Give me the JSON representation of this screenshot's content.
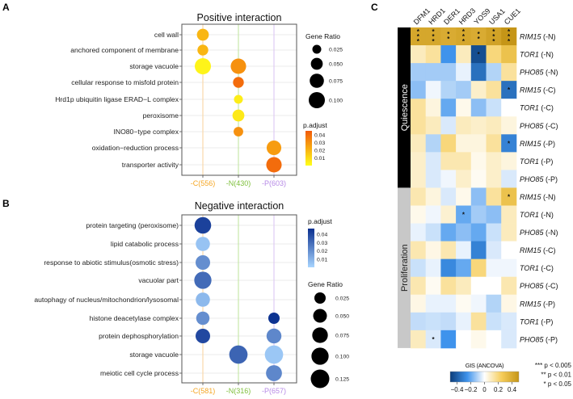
{
  "panels": {
    "a": "A",
    "b": "B",
    "c": "C"
  },
  "chart_data": [
    {
      "type": "scatter",
      "title": "Positive interaction",
      "columns": [
        {
          "label": "-C(556)",
          "color": "#f5a623",
          "line": "#f9d29a"
        },
        {
          "label": "-N(430)",
          "color": "#7dbf3a",
          "line": "#bde39a"
        },
        {
          "label": "-P(603)",
          "color": "#b689e6",
          "line": "#d9c2f3"
        }
      ],
      "terms": [
        "cell wall",
        "anchored component of membrane",
        "storage vacuole",
        "cellular response to misfold protein",
        "Hrd1p ubiquitin ligase ERAD−L complex",
        "peroxisome",
        "INO80−type complex",
        "oxidation−reduction process",
        "transporter activity"
      ],
      "points": [
        {
          "term": 0,
          "col": 0,
          "gene_ratio": 0.05,
          "p_adjust": 0.02
        },
        {
          "term": 1,
          "col": 0,
          "gene_ratio": 0.04,
          "p_adjust": 0.02
        },
        {
          "term": 2,
          "col": 0,
          "gene_ratio": 0.1,
          "p_adjust": 0.003
        },
        {
          "term": 2,
          "col": 1,
          "gene_ratio": 0.09,
          "p_adjust": 0.03
        },
        {
          "term": 3,
          "col": 1,
          "gene_ratio": 0.04,
          "p_adjust": 0.04
        },
        {
          "term": 4,
          "col": 1,
          "gene_ratio": 0.025,
          "p_adjust": 0.005
        },
        {
          "term": 5,
          "col": 1,
          "gene_ratio": 0.05,
          "p_adjust": 0.006
        },
        {
          "term": 6,
          "col": 1,
          "gene_ratio": 0.03,
          "p_adjust": 0.03
        },
        {
          "term": 7,
          "col": 2,
          "gene_ratio": 0.08,
          "p_adjust": 0.027
        },
        {
          "term": 8,
          "col": 2,
          "gene_ratio": 0.09,
          "p_adjust": 0.04
        }
      ],
      "size_legend": {
        "title": "Gene Ratio",
        "values": [
          0.025,
          0.05,
          0.075,
          0.1
        ],
        "labels": [
          "0.025",
          "0.050",
          "0.075",
          "0.100"
        ]
      },
      "color_legend": {
        "title": "p.adjust",
        "range": [
          0,
          0.045
        ],
        "ticks": [
          "0.04",
          "0.03",
          "0.02",
          "0.01"
        ],
        "low": "#ffff1a",
        "high": "#f15a0a"
      }
    },
    {
      "type": "scatter",
      "title": "Negative interaction",
      "columns": [
        {
          "label": "-C(581)",
          "color": "#f5a623",
          "line": "#f9d29a"
        },
        {
          "label": "-N(316)",
          "color": "#7dbf3a",
          "line": "#bde39a"
        },
        {
          "label": "-P(657)",
          "color": "#b689e6",
          "line": "#d9c2f3"
        }
      ],
      "terms": [
        "protein targeting (peroxisome)",
        "lipid catabolic process",
        "response to abiotic stimulus(osmotic stress)",
        "vacuolar part",
        "autophagy of nucleus/mitochondrion/lysosomal",
        "histone deacetylase complex",
        "protein dephosphorylation",
        "storage vacuole",
        "meiotic cell cycle process"
      ],
      "points": [
        {
          "term": 0,
          "col": 0,
          "gene_ratio": 0.09,
          "p_adjust": 0.042
        },
        {
          "term": 1,
          "col": 0,
          "gene_ratio": 0.055,
          "p_adjust": 0.005
        },
        {
          "term": 2,
          "col": 0,
          "gene_ratio": 0.06,
          "p_adjust": 0.02
        },
        {
          "term": 3,
          "col": 0,
          "gene_ratio": 0.1,
          "p_adjust": 0.03
        },
        {
          "term": 4,
          "col": 0,
          "gene_ratio": 0.055,
          "p_adjust": 0.008
        },
        {
          "term": 5,
          "col": 0,
          "gene_ratio": 0.045,
          "p_adjust": 0.02
        },
        {
          "term": 5,
          "col": 2,
          "gene_ratio": 0.025,
          "p_adjust": 0.046
        },
        {
          "term": 6,
          "col": 0,
          "gene_ratio": 0.06,
          "p_adjust": 0.04
        },
        {
          "term": 6,
          "col": 2,
          "gene_ratio": 0.065,
          "p_adjust": 0.022
        },
        {
          "term": 7,
          "col": 1,
          "gene_ratio": 0.12,
          "p_adjust": 0.032
        },
        {
          "term": 7,
          "col": 2,
          "gene_ratio": 0.12,
          "p_adjust": 0.004
        },
        {
          "term": 8,
          "col": 2,
          "gene_ratio": 0.08,
          "p_adjust": 0.022
        }
      ],
      "size_legend": {
        "title": "Gene Ratio",
        "values": [
          0.025,
          0.05,
          0.075,
          0.1,
          0.125
        ],
        "labels": [
          "0.025",
          "0.050",
          "0.075",
          "0.100",
          "0.125"
        ]
      },
      "color_legend": {
        "title": "p.adjust",
        "range": [
          0,
          0.047
        ],
        "ticks": [
          "0.04",
          "0.03",
          "0.02",
          "0.01"
        ],
        "low": "#a8d5ff",
        "high": "#0a2f8f"
      }
    },
    {
      "type": "heatmap",
      "columns": [
        "DFM1",
        "HRD1",
        "DER1",
        "HRD3",
        "YOS9",
        "USA1",
        "CUE1"
      ],
      "groups": [
        {
          "label": "Quiescence",
          "rows": 9,
          "color": "#000000"
        },
        {
          "label": "Proliferation",
          "rows": 9,
          "color": "#c8c8c8"
        }
      ],
      "rows": [
        {
          "gene": "RIM15",
          "cond": " (-N)",
          "values": [
            0.42,
            0.42,
            0.4,
            0.42,
            0.4,
            0.44,
            0.5
          ],
          "stars": [
            "***",
            "***",
            "**",
            "***",
            "**",
            "***",
            "***"
          ]
        },
        {
          "gene": "TOR1",
          "cond": " (-N)",
          "values": [
            0.1,
            0.15,
            -0.25,
            0.1,
            -0.45,
            0.2,
            0.3
          ],
          "stars": [
            "",
            "",
            "",
            "",
            "*",
            "",
            ""
          ]
        },
        {
          "gene": "PHO85",
          "cond": " (-N)",
          "values": [
            -0.12,
            -0.12,
            -0.12,
            -0.03,
            -0.35,
            -0.1,
            0.15
          ],
          "stars": [
            "",
            "",
            "",
            "",
            "",
            "",
            ""
          ]
        },
        {
          "gene": "RIM15",
          "cond": " (-C)",
          "values": [
            -0.15,
            -0.02,
            -0.1,
            -0.12,
            0.08,
            0.15,
            -0.35
          ],
          "stars": [
            "",
            "",
            "",
            "",
            "",
            "",
            "*"
          ]
        },
        {
          "gene": "TOR1",
          "cond": " (-C)",
          "values": [
            0.15,
            0.05,
            -0.2,
            0.03,
            -0.15,
            -0.07,
            0.0
          ],
          "stars": [
            "",
            "",
            "",
            "",
            "",
            "",
            ""
          ]
        },
        {
          "gene": "PHO85",
          "cond": " (-C)",
          "values": [
            0.15,
            0.1,
            -0.05,
            0.1,
            0.08,
            0.1,
            0.05
          ],
          "stars": [
            "",
            "",
            "",
            "",
            "",
            "",
            ""
          ]
        },
        {
          "gene": "RIM15",
          "cond": " (-P)",
          "values": [
            0.1,
            -0.1,
            0.2,
            0.05,
            0.05,
            0.15,
            -0.3
          ],
          "stars": [
            "",
            "",
            "",
            "",
            "",
            "",
            "*"
          ]
        },
        {
          "gene": "TOR1",
          "cond": " (-P)",
          "values": [
            0.08,
            -0.05,
            0.12,
            0.12,
            0.03,
            0.08,
            0.05
          ],
          "stars": [
            "",
            "",
            "",
            "",
            "",
            "",
            ""
          ]
        },
        {
          "gene": "PHO85",
          "cond": " (-P)",
          "values": [
            0.08,
            -0.05,
            -0.02,
            0.08,
            0.02,
            0.08,
            -0.05
          ],
          "stars": [
            "",
            "",
            "",
            "",
            "",
            "",
            ""
          ]
        },
        {
          "gene": "RIM15",
          "cond": " (-N)",
          "values": [
            0.12,
            0.05,
            -0.05,
            0.03,
            -0.15,
            0.15,
            0.3
          ],
          "stars": [
            "",
            "",
            "",
            "",
            "",
            "",
            "*"
          ]
        },
        {
          "gene": "TOR1",
          "cond": " (-N)",
          "values": [
            0.03,
            -0.02,
            0.07,
            -0.2,
            -0.12,
            -0.15,
            0.1
          ],
          "stars": [
            "",
            "",
            "",
            "*",
            "",
            "",
            ""
          ]
        },
        {
          "gene": "PHO85",
          "cond": " (-N)",
          "values": [
            -0.03,
            -0.07,
            -0.2,
            -0.15,
            -0.2,
            -0.07,
            0.1
          ],
          "stars": [
            "",
            "",
            "",
            "",
            "",
            "",
            ""
          ]
        },
        {
          "gene": "RIM15",
          "cond": " (-C)",
          "values": [
            0.12,
            0.04,
            0.12,
            -0.03,
            -0.3,
            -0.05,
            0.0
          ],
          "stars": [
            "",
            "",
            "",
            "",
            "",
            "",
            ""
          ]
        },
        {
          "gene": "TOR1",
          "cond": " (-C)",
          "values": [
            -0.07,
            -0.03,
            -0.28,
            -0.2,
            0.2,
            -0.02,
            -0.02
          ],
          "stars": [
            "",
            "",
            "",
            "",
            "",
            "",
            ""
          ]
        },
        {
          "gene": "PHO85",
          "cond": " (-C)",
          "values": [
            0.12,
            0.02,
            0.15,
            0.1,
            0.0,
            0.0,
            0.12
          ],
          "stars": [
            "",
            "",
            "",
            "",
            "",
            "",
            ""
          ]
        },
        {
          "gene": "RIM15",
          "cond": " (-P)",
          "values": [
            0.04,
            -0.03,
            -0.03,
            0.02,
            -0.02,
            -0.1,
            0.04
          ],
          "stars": [
            "",
            "",
            "",
            "",
            "",
            "",
            ""
          ]
        },
        {
          "gene": "TOR1",
          "cond": " (-P)",
          "values": [
            -0.08,
            -0.07,
            -0.08,
            -0.03,
            0.15,
            -0.07,
            -0.05
          ],
          "stars": [
            "",
            "",
            "",
            "",
            "",
            "",
            ""
          ]
        },
        {
          "gene": "PHO85",
          "cond": " (-P)",
          "values": [
            0.1,
            -0.05,
            -0.25,
            0.0,
            0.03,
            0.0,
            -0.05
          ],
          "stars": [
            "",
            "*",
            "",
            "",
            "",
            "",
            ""
          ]
        }
      ],
      "colorbar": {
        "title": "GIS (ANCOVA)",
        "range": [
          -0.5,
          0.5
        ],
        "ticks": [
          -0.4,
          -0.2,
          0,
          0.2,
          0.4
        ],
        "tick_labels": [
          "−0.4",
          "−0.2",
          "0",
          "0.2",
          "0.4"
        ],
        "colors": [
          "#0b3d7a",
          "#3f93ec",
          "#ffffff",
          "#f6cd5a",
          "#c59517"
        ]
      },
      "significance": [
        "*** p < 0.005",
        "** p < 0.01",
        "* p < 0.05"
      ]
    }
  ]
}
